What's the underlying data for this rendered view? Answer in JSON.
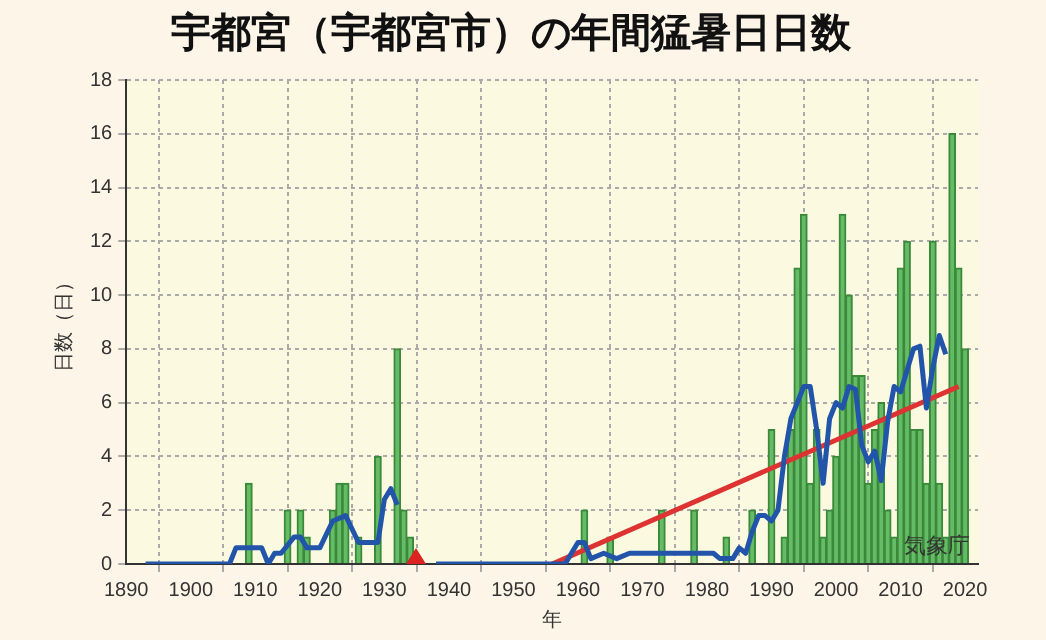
{
  "chart_data": {
    "type": "bar",
    "title": "宇都宮（宇都宮市）の年間猛暑日日数",
    "xlabel": "年",
    "ylabel": "日数（日）",
    "annotations": [
      "気象庁"
    ],
    "xlim": [
      1890,
      2022
    ],
    "xticks": [
      1890,
      1900,
      1910,
      1920,
      1930,
      1940,
      1950,
      1960,
      1970,
      1980,
      1990,
      2000,
      2010,
      2020
    ],
    "ylim": [
      0,
      18
    ],
    "yticks": [
      0,
      2,
      4,
      6,
      8,
      10,
      12,
      14,
      16,
      18
    ],
    "grid": true,
    "marker": "none",
    "series": [
      {
        "color": "#66bb66",
        "x": [
          1909,
          1915,
          1917,
          1918,
          1922,
          1923,
          1924,
          1926,
          1929,
          1932,
          1933,
          1934,
          1961,
          1965,
          1973,
          1978,
          1983,
          1987,
          1990,
          1992,
          1993,
          1994,
          1995,
          1996,
          1997,
          1998,
          1999,
          2000,
          2001,
          2002,
          2003,
          2004,
          2005,
          2006,
          2007,
          2008,
          2009,
          2010,
          2011,
          2012,
          2013,
          2014,
          2015,
          2016,
          2017,
          2018,
          2019,
          2020
        ],
        "values": [
          3,
          2,
          2,
          1,
          2,
          3,
          3,
          1,
          4,
          8,
          2,
          1,
          2,
          1,
          2,
          2,
          1,
          2,
          5,
          1,
          5,
          11,
          13,
          3,
          5,
          1,
          2,
          4,
          13,
          10,
          7,
          7,
          3,
          5,
          6,
          2,
          1,
          11,
          12,
          5,
          5,
          3,
          12,
          3,
          1,
          16,
          11,
          8
        ]
      },
      {
        "type": "line",
        "color": "#2255aa",
        "x": [
          1893,
          1906,
          1907,
          1911,
          1912,
          1913,
          1914,
          1916,
          1917,
          1918,
          1920,
          1922,
          1924,
          1926,
          1929,
          1930,
          1931,
          1932,
          1935,
          1938,
          1958,
          1959,
          1960,
          1961,
          1962,
          1964,
          1966,
          1968,
          1977,
          1981,
          1982,
          1984,
          1985,
          1986,
          1987,
          1988,
          1989,
          1990,
          1991,
          1992,
          1993,
          1994,
          1995,
          1996,
          1997,
          1998,
          1999,
          2000,
          2001,
          2002,
          2003,
          2004,
          2005,
          2006,
          2007,
          2008,
          2009,
          2010,
          2011,
          2012,
          2013,
          2014,
          2015,
          2016,
          2017
        ],
        "values": [
          0,
          0,
          0.6,
          0.6,
          0,
          0.4,
          0.4,
          1.0,
          1.0,
          0.6,
          0.6,
          1.6,
          1.8,
          0.8,
          0.8,
          2.4,
          2.8,
          2.2,
          null,
          0,
          0,
          0.4,
          0.8,
          0.8,
          0.2,
          0.4,
          0.2,
          0.4,
          0.4,
          0.4,
          0.2,
          0.2,
          0.6,
          0.4,
          1.2,
          1.8,
          1.8,
          1.6,
          2.0,
          4.0,
          5.4,
          6.0,
          6.6,
          6.6,
          5.0,
          3.0,
          5.4,
          6.0,
          5.8,
          6.6,
          6.5,
          4.4,
          3.8,
          4.2,
          3.1,
          5.3,
          6.6,
          6.4,
          7.2,
          8.0,
          8.1,
          5.8,
          7.3,
          8.5,
          7.8
        ]
      },
      {
        "type": "line",
        "color": "#dd3333",
        "x": [
          1956,
          2019
        ],
        "values": [
          0,
          6.6
        ]
      }
    ]
  }
}
